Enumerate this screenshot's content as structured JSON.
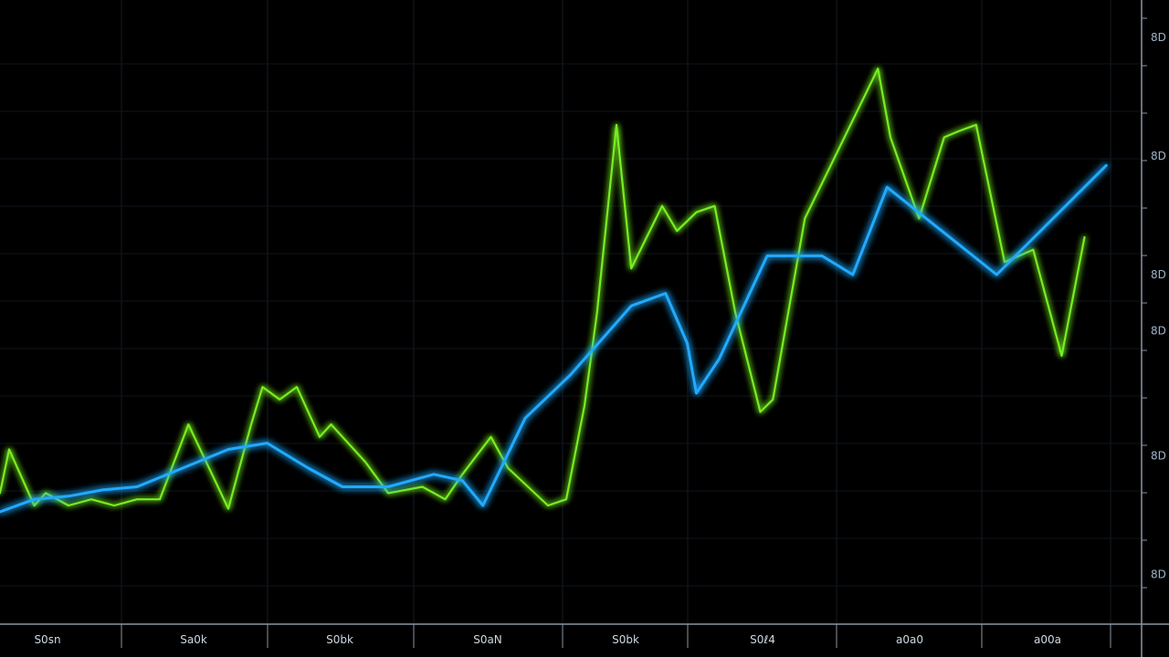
{
  "chart_data": {
    "type": "line",
    "title": "",
    "xlabel": "",
    "ylabel": "",
    "x_tick_labels": [
      "S0sn",
      "Sa0k",
      "S0bk",
      "S0aN",
      "S0bk",
      "S0ℓ4",
      "a0a0",
      "a00a"
    ],
    "y_tick_labels": [
      "8D",
      "8D",
      "8D",
      "8D",
      "8D",
      "8D"
    ],
    "y_tick_values": [
      94,
      75,
      56,
      47,
      27,
      8
    ],
    "xlim": [
      0,
      100
    ],
    "ylim": [
      0,
      100
    ],
    "grid": true,
    "legend": "none",
    "series": [
      {
        "color": "#77ee22",
        "x": [
          0,
          0.8,
          3,
          4,
          6,
          8,
          10,
          12,
          14,
          16.5,
          20,
          22,
          23,
          24.5,
          26,
          28,
          29,
          32,
          34,
          37,
          39,
          40.5,
          43,
          44.5,
          48,
          49.6,
          51.2,
          52.3,
          54,
          55.3,
          58,
          59.3,
          61,
          62.6,
          64.4,
          66.6,
          67.7,
          70.5,
          76.9,
          78,
          80.5,
          82.7,
          84,
          85.5,
          88,
          90.5,
          93,
          95
        ],
        "y": [
          21,
          28,
          19,
          21,
          19,
          20,
          19,
          20,
          20,
          32,
          18.5,
          32,
          38,
          36,
          38,
          30,
          32,
          26,
          21,
          22,
          20,
          24,
          30,
          25,
          19,
          20,
          35,
          50,
          80,
          57,
          67,
          63,
          66,
          67,
          50,
          34,
          36,
          65,
          89,
          78,
          65,
          78,
          79,
          80,
          58,
          60,
          43,
          62
        ]
      },
      {
        "color": "#22aaff",
        "x": [
          0,
          3,
          6,
          9,
          12,
          16,
          20,
          23.4,
          27,
          30,
          34,
          38,
          40.5,
          42.3,
          46,
          50,
          55.3,
          58.3,
          60.2,
          61,
          63,
          67.2,
          72,
          74.7,
          77.7,
          87.3,
          96.9
        ],
        "y": [
          18,
          20,
          20.5,
          21.5,
          22,
          25,
          28,
          29,
          25,
          22,
          22,
          24,
          23,
          19,
          33,
          40,
          51,
          53,
          45,
          37,
          42.5,
          59,
          59,
          56,
          70,
          56,
          73.5
        ]
      }
    ]
  }
}
